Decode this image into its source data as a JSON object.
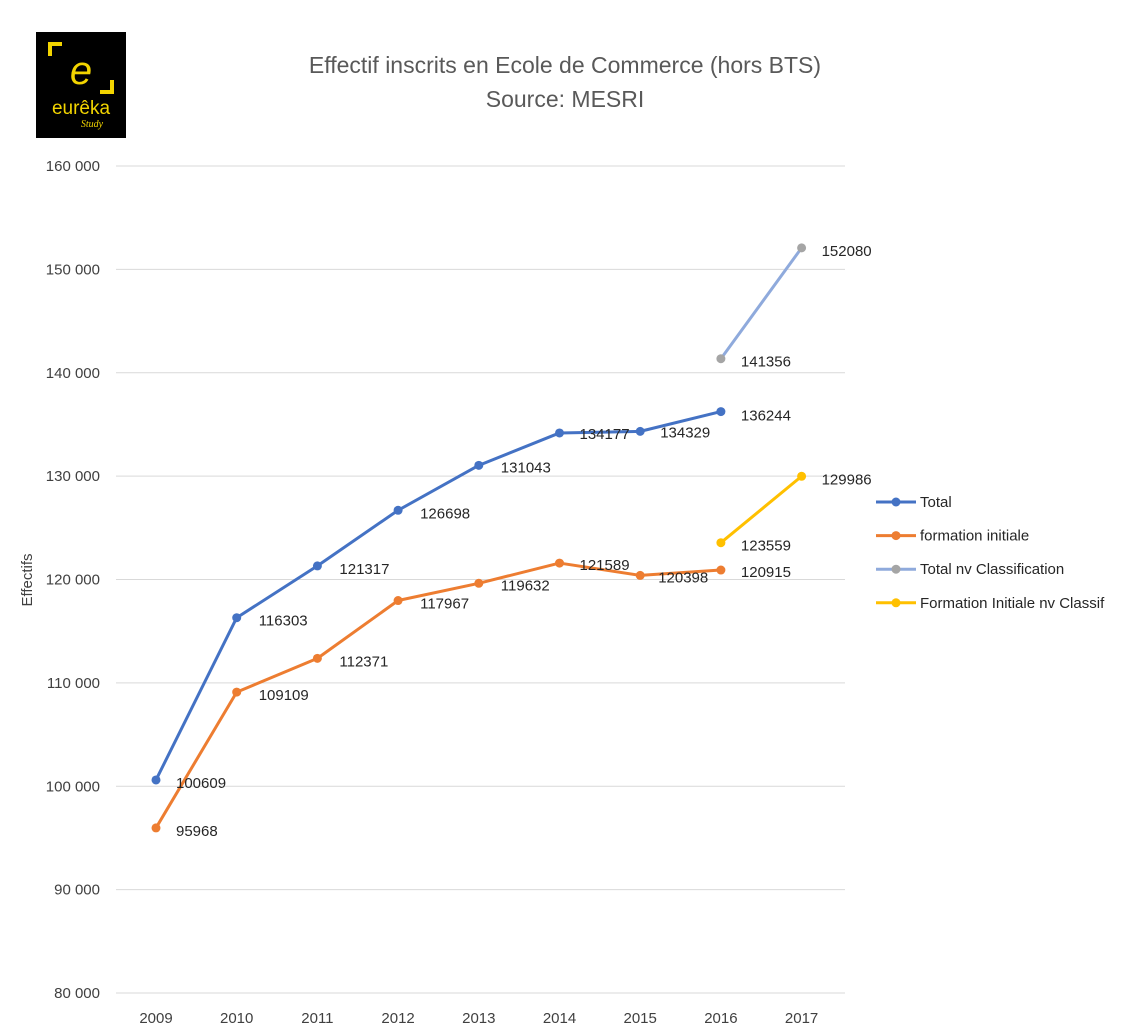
{
  "logo": {
    "brand": "eurêka",
    "tagline": "Study",
    "letter": "e",
    "accent": "#f2d400"
  },
  "chart_data": {
    "type": "line",
    "title": "Effectif inscrits en Ecole de Commerce (hors BTS)",
    "subtitle": "Source: MESRI",
    "xlabel": "",
    "ylabel": "Effectifs",
    "x": [
      2009,
      2010,
      2011,
      2012,
      2013,
      2014,
      2015,
      2016,
      2017
    ],
    "ylim": [
      80000,
      160000
    ],
    "yticks": [
      80000,
      90000,
      100000,
      110000,
      120000,
      130000,
      140000,
      150000,
      160000
    ],
    "ytick_labels": [
      "80 000",
      "90 000",
      "100 000",
      "110 000",
      "120 000",
      "130 000",
      "140 000",
      "150 000",
      "160 000"
    ],
    "grid": true,
    "legend_position": "right",
    "series": [
      {
        "name": "Total",
        "color": "#4472c4",
        "marker_color": "#4472c4",
        "x": [
          2009,
          2010,
          2011,
          2012,
          2013,
          2014,
          2015,
          2016
        ],
        "values": [
          100609,
          116303,
          121317,
          126698,
          131043,
          134177,
          134329,
          136244
        ]
      },
      {
        "name": "formation initiale",
        "color": "#ed7d31",
        "marker_color": "#ed7d31",
        "x": [
          2009,
          2010,
          2011,
          2012,
          2013,
          2014,
          2015,
          2016
        ],
        "values": [
          95968,
          109109,
          112371,
          117967,
          119632,
          121589,
          120398,
          120915
        ]
      },
      {
        "name": "Total nv Classification",
        "color": "#8faadc",
        "marker_color": "#a5a5a5",
        "x": [
          2016,
          2017
        ],
        "values": [
          141356,
          152080
        ]
      },
      {
        "name": "Formation Initiale nv Classif",
        "color": "#ffc000",
        "marker_color": "#ffc000",
        "x": [
          2016,
          2017
        ],
        "values": [
          123559,
          129986
        ]
      }
    ]
  }
}
